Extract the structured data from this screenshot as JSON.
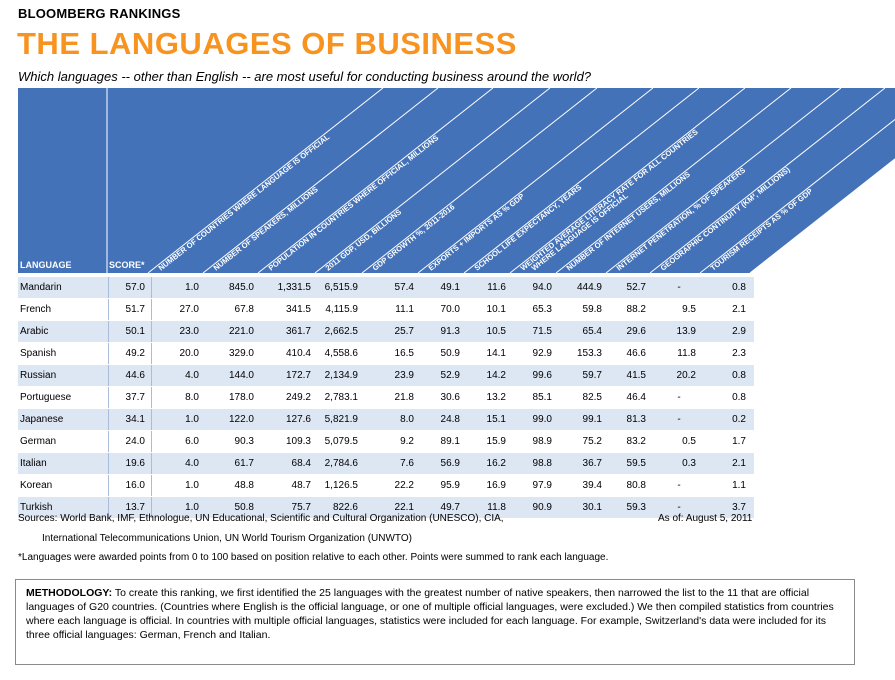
{
  "brand": "BLOOMBERG RANKINGS",
  "title": "THE LANGUAGES OF BUSINESS",
  "subtitle": "Which languages -- other than English -- are most useful for conducting business around the world?",
  "colors": {
    "title": "#f7931e",
    "header_blue": "#4472b8",
    "row_shade": "#dde6f3"
  },
  "chart_data": {
    "type": "table",
    "columns": [
      "LANGUAGE",
      "SCORE*",
      "NUMBER OF COUNTRIES WHERE LANGUAGE IS OFFICIAL",
      "NUMBER OF SPEAKERS, MILLIONS",
      "POPULATION IN COUNTRIES WHERE OFFICIAL, MILLIONS",
      "2011 GDP, USD, BILLIONS",
      "GDP GROWTH %, 2011-2016",
      "EXPORTS + IMPORTS AS % GDP",
      "SCHOOL LIFE EXPECTANCY, YEARS",
      "WEIGHTED AVERAGE LITERACY RATE FOR ALL COUNTRIES WHERE LANGUAGE IS OFFICIAL",
      "NUMBER OF INTERNET USERS, MILLIONS",
      "INTERNET PENETRATION, % OF SPEAKERS",
      "GEOGRAPHIC CONTINUITY (KM², MILLIONS)",
      "TOURISM RECEIPTS AS % OF GDP"
    ],
    "rows": [
      [
        "Mandarin",
        "57.0",
        "1.0",
        "845.0",
        "1,331.5",
        "6,515.9",
        "57.4",
        "49.1",
        "11.6",
        "94.0",
        "444.9",
        "52.7",
        "-",
        "0.8"
      ],
      [
        "French",
        "51.7",
        "27.0",
        "67.8",
        "341.5",
        "4,115.9",
        "11.1",
        "70.0",
        "10.1",
        "65.3",
        "59.8",
        "88.2",
        "9.5",
        "2.1"
      ],
      [
        "Arabic",
        "50.1",
        "23.0",
        "221.0",
        "361.7",
        "2,662.5",
        "25.7",
        "91.3",
        "10.5",
        "71.5",
        "65.4",
        "29.6",
        "13.9",
        "2.9"
      ],
      [
        "Spanish",
        "49.2",
        "20.0",
        "329.0",
        "410.4",
        "4,558.6",
        "16.5",
        "50.9",
        "14.1",
        "92.9",
        "153.3",
        "46.6",
        "11.8",
        "2.3"
      ],
      [
        "Russian",
        "44.6",
        "4.0",
        "144.0",
        "172.7",
        "2,134.9",
        "23.9",
        "52.9",
        "14.2",
        "99.6",
        "59.7",
        "41.5",
        "20.2",
        "0.8"
      ],
      [
        "Portuguese",
        "37.7",
        "8.0",
        "178.0",
        "249.2",
        "2,783.1",
        "21.8",
        "30.6",
        "13.2",
        "85.1",
        "82.5",
        "46.4",
        "-",
        "0.8"
      ],
      [
        "Japanese",
        "34.1",
        "1.0",
        "122.0",
        "127.6",
        "5,821.9",
        "8.0",
        "24.8",
        "15.1",
        "99.0",
        "99.1",
        "81.3",
        "-",
        "0.2"
      ],
      [
        "German",
        "24.0",
        "6.0",
        "90.3",
        "109.3",
        "5,079.5",
        "9.2",
        "89.1",
        "15.9",
        "98.9",
        "75.2",
        "83.2",
        "0.5",
        "1.7"
      ],
      [
        "Italian",
        "19.6",
        "4.0",
        "61.7",
        "68.4",
        "2,784.6",
        "7.6",
        "56.9",
        "16.2",
        "98.8",
        "36.7",
        "59.5",
        "0.3",
        "2.1"
      ],
      [
        "Korean",
        "16.0",
        "1.0",
        "48.8",
        "48.7",
        "1,126.5",
        "22.2",
        "95.9",
        "16.9",
        "97.9",
        "39.4",
        "80.8",
        "-",
        "1.1"
      ],
      [
        "Turkish",
        "13.7",
        "1.0",
        "50.8",
        "75.7",
        "822.6",
        "22.1",
        "49.7",
        "11.8",
        "90.9",
        "30.1",
        "59.3",
        "-",
        "3.7"
      ]
    ]
  },
  "sources_line1": "Sources: World Bank, IMF, Ethnologue, UN Educational, Scientific and Cultural Organization (UNESCO), CIA,",
  "sources_line2": "International Telecommunications Union, UN World Tourism Organization (UNWTO)",
  "as_of": "As of: August 5, 2011",
  "footnote": "*Languages were awarded points from 0 to 100 based on position relative to each other. Points were summed to rank each language.",
  "methodology_label": "METHODOLOGY:",
  "methodology_text": "To create this ranking, we first identified the 25 languages with the greatest number of native speakers, then narrowed the list to the 11 that are official languages of G20 countries. (Countries where English is the official language, or one of multiple official languages, were excluded.) We then compiled statistics from countries where each language is official. In countries with multiple official languages, statistics were included for each language. For example, Switzerland's data were included for its three official languages: German, French and Italian."
}
